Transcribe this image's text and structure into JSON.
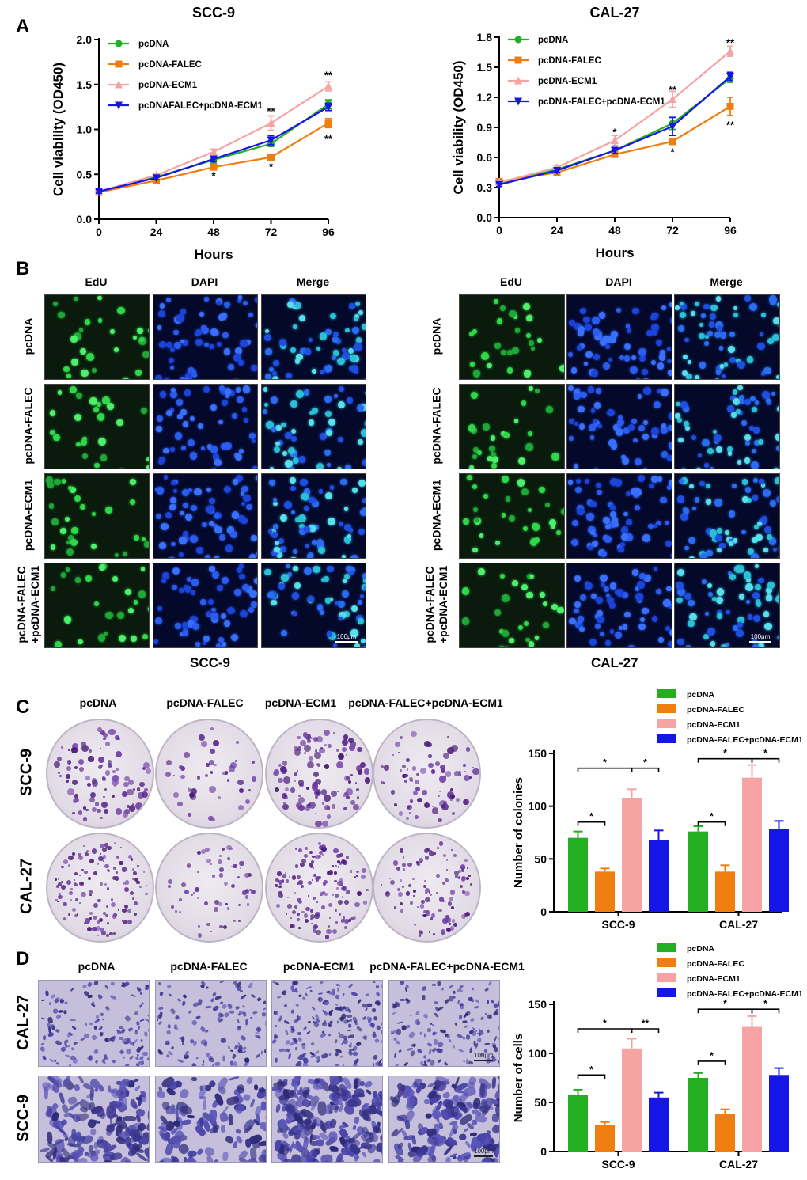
{
  "panels": {
    "A": "A",
    "B": "B",
    "C": "C",
    "D": "D"
  },
  "colors": {
    "pcDNA": "#22b022",
    "pcDNA-FALEC": "#f07d0f",
    "pcDNA-ECM1": "#f5a3a3",
    "combo": "#1515e8"
  },
  "panelB": {
    "col_labels": [
      "EdU",
      "DAPI",
      "Merge"
    ],
    "row_labels": [
      "pcDNA",
      "pcDNA-FALEC",
      "pcDNA-ECM1",
      "pcDNA-FALEC\n+pcDNA-ECM1"
    ],
    "scale": "100μm",
    "captions": [
      "SCC-9",
      "CAL-27"
    ]
  },
  "panelC": {
    "col_labels": [
      "pcDNA",
      "pcDNA-FALEC",
      "pcDNA-ECM1",
      "pcDNA-FALEC+pcDNA-ECM1"
    ],
    "row_labels": [
      "SCC-9",
      "CAL-27"
    ]
  },
  "panelD": {
    "col_labels": [
      "pcDNA",
      "pcDNA-FALEC",
      "pcDNA-ECM1",
      "pcDNA-FALEC+pcDNA-ECM1"
    ],
    "row_labels": [
      "CAL-27",
      "SCC-9"
    ],
    "scale": "100μm"
  },
  "chart_data": [
    {
      "id": "A-left",
      "type": "line",
      "title": "SCC-9",
      "xlabel": "Hours",
      "ylabel": "Cell viability (OD450)",
      "x": [
        0,
        24,
        48,
        72,
        96
      ],
      "xlim": [
        0,
        96
      ],
      "ylim": [
        0,
        2.0
      ],
      "yticks": [
        0.0,
        0.5,
        1.0,
        1.5,
        2.0
      ],
      "ytick_labels": [
        "0.0",
        "0.5",
        "1.0",
        "1.5",
        "2.0"
      ],
      "series": [
        {
          "name": "pcDNA",
          "color_key": "pcDNA",
          "marker": "circle",
          "values": [
            0.3,
            0.47,
            0.66,
            0.84,
            1.28
          ],
          "err": [
            0.02,
            0.02,
            0.04,
            0.03,
            0.05
          ]
        },
        {
          "name": "pcDNA-FALEC",
          "color_key": "pcDNA-FALEC",
          "marker": "square",
          "values": [
            0.3,
            0.43,
            0.58,
            0.69,
            1.07
          ],
          "err": [
            0.02,
            0.02,
            0.03,
            0.03,
            0.05
          ]
        },
        {
          "name": "pcDNA-ECM1",
          "color_key": "pcDNA-ECM1",
          "marker": "triangle-up",
          "values": [
            0.31,
            0.49,
            0.75,
            1.07,
            1.48
          ],
          "err": [
            0.02,
            0.02,
            0.03,
            0.08,
            0.05
          ]
        },
        {
          "name": "pcDNAFALEC+pcDNA-ECM1",
          "color_key": "combo",
          "marker": "triangle-down",
          "values": [
            0.31,
            0.46,
            0.67,
            0.88,
            1.25
          ],
          "err": [
            0.02,
            0.02,
            0.03,
            0.05,
            0.04
          ]
        }
      ],
      "annotations": [
        {
          "x": 48,
          "y": 0.48,
          "text": "*"
        },
        {
          "x": 72,
          "y": 0.58,
          "text": "*"
        },
        {
          "x": 72,
          "y": 1.2,
          "text": "**"
        },
        {
          "x": 96,
          "y": 0.89,
          "text": "**"
        },
        {
          "x": 96,
          "y": 1.6,
          "text": "**"
        }
      ]
    },
    {
      "id": "A-right",
      "type": "line",
      "title": "CAL-27",
      "xlabel": "Hours",
      "ylabel": "Cell viability (OD450)",
      "x": [
        0,
        24,
        48,
        72,
        96
      ],
      "xlim": [
        0,
        96
      ],
      "ylim": [
        0,
        1.8
      ],
      "yticks": [
        0.0,
        0.3,
        0.6,
        0.9,
        1.2,
        1.5,
        1.8
      ],
      "ytick_labels": [
        "0.0",
        "0.3",
        "0.6",
        "0.9",
        "1.2",
        "1.5",
        "1.8"
      ],
      "series": [
        {
          "name": "pcDNA",
          "color_key": "pcDNA",
          "marker": "circle",
          "values": [
            0.34,
            0.48,
            0.67,
            0.94,
            1.39
          ],
          "err": [
            0.02,
            0.02,
            0.03,
            0.06,
            0.04
          ]
        },
        {
          "name": "pcDNA-FALEC",
          "color_key": "pcDNA-FALEC",
          "marker": "square",
          "values": [
            0.36,
            0.45,
            0.63,
            0.76,
            1.11
          ],
          "err": [
            0.02,
            0.02,
            0.02,
            0.03,
            0.09
          ]
        },
        {
          "name": "pcDNA-ECM1",
          "color_key": "pcDNA-ECM1",
          "marker": "triangle-up",
          "values": [
            0.35,
            0.5,
            0.77,
            1.18,
            1.66
          ],
          "err": [
            0.02,
            0.02,
            0.05,
            0.08,
            0.05
          ]
        },
        {
          "name": "pcDNA-FALEC+pcDNA-ECM1",
          "color_key": "combo",
          "marker": "triangle-down",
          "values": [
            0.33,
            0.47,
            0.67,
            0.91,
            1.41
          ],
          "err": [
            0.02,
            0.02,
            0.03,
            0.09,
            0.04
          ]
        }
      ],
      "annotations": [
        {
          "x": 48,
          "y": 0.85,
          "text": "*"
        },
        {
          "x": 72,
          "y": 0.65,
          "text": "*"
        },
        {
          "x": 72,
          "y": 1.27,
          "text": "**"
        },
        {
          "x": 96,
          "y": 0.92,
          "text": "**"
        },
        {
          "x": 96,
          "y": 1.74,
          "text": "**"
        }
      ]
    },
    {
      "id": "C-bars",
      "type": "bar",
      "ylabel": "Number of colonies",
      "categories": [
        "SCC-9",
        "CAL-27"
      ],
      "ylim": [
        0,
        150
      ],
      "yticks": [
        0,
        50,
        100,
        150
      ],
      "series": [
        {
          "name": "pcDNA",
          "color_key": "pcDNA",
          "values": [
            70,
            76
          ],
          "err": [
            6,
            5
          ]
        },
        {
          "name": "pcDNA-FALEC",
          "color_key": "pcDNA-FALEC",
          "values": [
            38,
            38
          ],
          "err": [
            3,
            6
          ]
        },
        {
          "name": "pcDNA-ECM1",
          "color_key": "pcDNA-ECM1",
          "values": [
            108,
            127
          ],
          "err": [
            8,
            12
          ]
        },
        {
          "name": "pcDNA-FALEC+pcDNA-ECM1",
          "color_key": "combo",
          "values": [
            68,
            78
          ],
          "err": [
            9,
            8
          ]
        }
      ],
      "brackets": [
        {
          "cat": 0,
          "a": 0,
          "b": 1,
          "y": 85,
          "text": "*"
        },
        {
          "cat": 0,
          "a": 0,
          "b": 2,
          "y": 136,
          "text": "*"
        },
        {
          "cat": 0,
          "a": 2,
          "b": 3,
          "y": 136,
          "text": "*"
        },
        {
          "cat": 1,
          "a": 0,
          "b": 1,
          "y": 85,
          "text": "*"
        },
        {
          "cat": 1,
          "a": 0,
          "b": 2,
          "y": 145,
          "text": "*"
        },
        {
          "cat": 1,
          "a": 2,
          "b": 3,
          "y": 145,
          "text": "*"
        }
      ]
    },
    {
      "id": "D-bars",
      "type": "bar",
      "ylabel": "Number of cells",
      "categories": [
        "SCC-9",
        "CAL-27"
      ],
      "ylim": [
        0,
        150
      ],
      "yticks": [
        0,
        50,
        100,
        150
      ],
      "series": [
        {
          "name": "pcDNA",
          "color_key": "pcDNA",
          "values": [
            58,
            75
          ],
          "err": [
            5,
            5
          ]
        },
        {
          "name": "pcDNA-FALEC",
          "color_key": "pcDNA-FALEC",
          "values": [
            27,
            38
          ],
          "err": [
            3,
            5
          ]
        },
        {
          "name": "pcDNA-ECM1",
          "color_key": "pcDNA-ECM1",
          "values": [
            105,
            127
          ],
          "err": [
            10,
            11
          ]
        },
        {
          "name": "pcDNA-FALEC+pcDNA-ECM1",
          "color_key": "combo",
          "values": [
            55,
            78
          ],
          "err": [
            5,
            7
          ]
        }
      ],
      "brackets": [
        {
          "cat": 0,
          "a": 0,
          "b": 1,
          "y": 78,
          "text": "*"
        },
        {
          "cat": 0,
          "a": 0,
          "b": 2,
          "y": 125,
          "text": "*"
        },
        {
          "cat": 0,
          "a": 2,
          "b": 3,
          "y": 125,
          "text": "**"
        },
        {
          "cat": 1,
          "a": 0,
          "b": 1,
          "y": 92,
          "text": "*"
        },
        {
          "cat": 1,
          "a": 0,
          "b": 2,
          "y": 145,
          "text": "*"
        },
        {
          "cat": 1,
          "a": 2,
          "b": 3,
          "y": 145,
          "text": "*"
        }
      ]
    }
  ]
}
